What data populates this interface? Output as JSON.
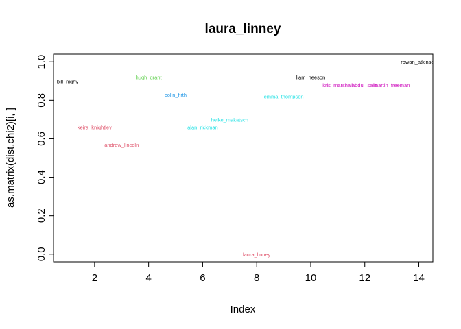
{
  "chart_data": {
    "type": "scatter",
    "title": "laura_linney",
    "xlabel": "Index",
    "ylabel": "as.matrix(dist.chi2)[i, ]",
    "xlim": [
      0.48,
      14.52
    ],
    "ylim": [
      -0.04,
      1.04
    ],
    "x_ticks": [
      2,
      4,
      6,
      8,
      10,
      12,
      14
    ],
    "y_ticks": [
      0.0,
      0.2,
      0.4,
      0.6,
      0.8,
      1.0
    ],
    "x_tick_labels": [
      "2",
      "4",
      "6",
      "8",
      "10",
      "12",
      "14"
    ],
    "y_tick_labels": [
      "0.0",
      "0.2",
      "0.4",
      "0.6",
      "0.8",
      "1.0"
    ],
    "points": [
      {
        "x": 1,
        "y": 0.9,
        "label": "bill_nighy",
        "color": "#000000"
      },
      {
        "x": 2,
        "y": 0.66,
        "label": "keira_knightley",
        "color": "#df536b"
      },
      {
        "x": 3,
        "y": 0.57,
        "label": "andrew_lincoln",
        "color": "#df536b"
      },
      {
        "x": 4,
        "y": 0.92,
        "label": "hugh_grant",
        "color": "#61d04f"
      },
      {
        "x": 5,
        "y": 0.83,
        "label": "colin_firth",
        "color": "#2297e6"
      },
      {
        "x": 6,
        "y": 0.66,
        "label": "alan_rickman",
        "color": "#28e2e5"
      },
      {
        "x": 7,
        "y": 0.7,
        "label": "heike_makatsch",
        "color": "#28e2e5"
      },
      {
        "x": 8,
        "y": 0.0,
        "label": "laura_linney",
        "color": "#df536b"
      },
      {
        "x": 9,
        "y": 0.82,
        "label": "emma_thompson",
        "color": "#28e2e5"
      },
      {
        "x": 10,
        "y": 0.92,
        "label": "liam_neeson",
        "color": "#000000"
      },
      {
        "x": 11,
        "y": 0.88,
        "label": "kris_marshall",
        "color": "#cd0bbc"
      },
      {
        "x": 12,
        "y": 0.88,
        "label": "abdul_salis",
        "color": "#cd0bbc"
      },
      {
        "x": 13,
        "y": 0.88,
        "label": "martin_freeman",
        "color": "#cd0bbc"
      },
      {
        "x": 14,
        "y": 1.0,
        "label": "rowan_atkinson",
        "color": "#000000"
      }
    ]
  }
}
